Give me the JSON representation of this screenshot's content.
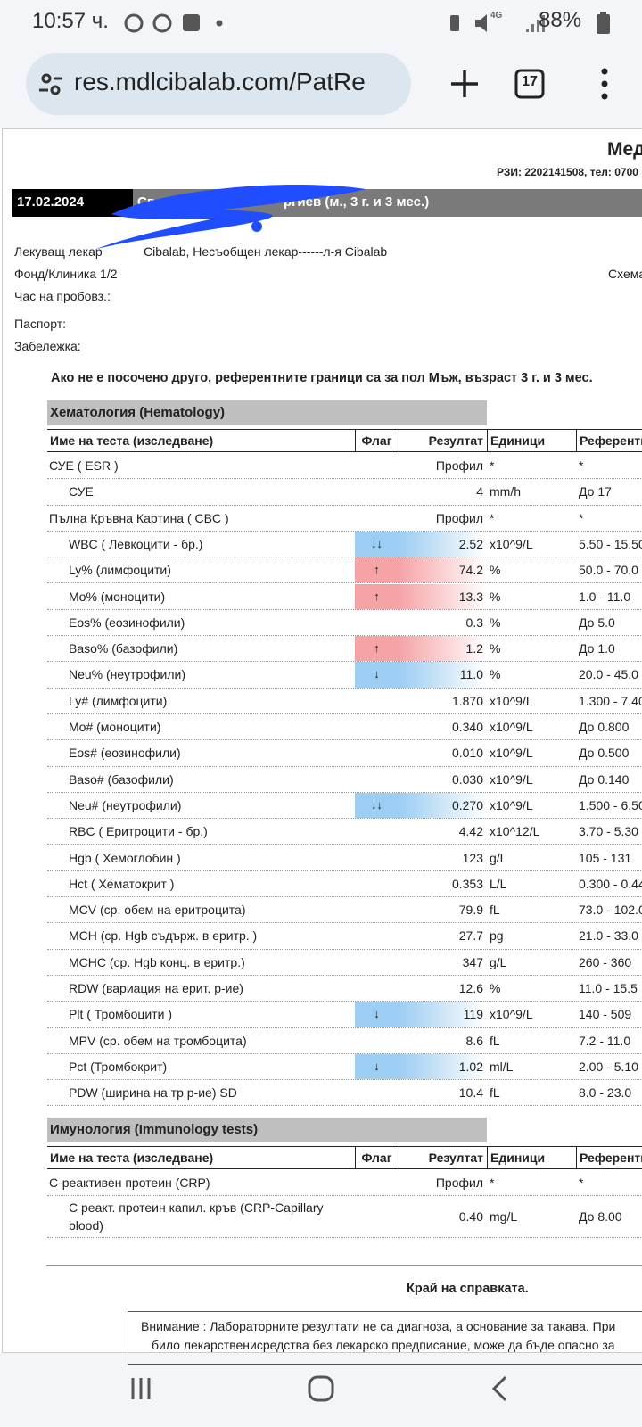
{
  "status_bar": {
    "time": "10:57 ч.",
    "network": "4G",
    "battery": "88%"
  },
  "browser": {
    "url": "res.mdlcibalab.com/PatRe",
    "tabs": "17"
  },
  "report": {
    "title": "Мед",
    "contact": "РЗИ: 2202141508, тел: 0700",
    "date": "17.02.2024",
    "patient_start": "Светос",
    "patient_end": "ргиев (м., 3 г. и 3 мес.)",
    "fields": [
      {
        "label": "Лекуващ лекар",
        "value": "Cibalab, Несъобщен лекар------л-я Cibalab"
      },
      {
        "label": "Фонд/Клиника 1/2",
        "value": "Схема"
      },
      {
        "label": "Час на пробовз.:"
      },
      {
        "label": "Паспорт:"
      },
      {
        "label": "Забележка:"
      }
    ],
    "note": "Ако не е посочено друго, референтните граници са за пол Мъж, възраст 3 г. и 3 мес.",
    "sections": [
      {
        "title": "Хематология (Hematology)",
        "columns": [
          "Име на теста (изследване)",
          "Флаг",
          "Резултат",
          "Единици",
          "Референтн"
        ],
        "rows": [
          {
            "name": "СУЕ ( ESR )",
            "result": "Профил",
            "unit": "*",
            "ref": "*",
            "level": 0
          },
          {
            "name": "СУЕ",
            "result": "4",
            "unit": "mm/h",
            "ref": "До 17",
            "level": 1
          },
          {
            "name": "Пълна Кръвна Картина ( CBC )",
            "result": "Профил",
            "unit": "*",
            "ref": "*",
            "level": 0
          },
          {
            "name": "WBC ( Левкоцити - бр.)",
            "flag": "↓↓",
            "flag_color": "#9ccdf2",
            "result": "2.52",
            "unit": "x10^9/L",
            "ref": "5.50 - 15.50",
            "level": 1
          },
          {
            "name": "Ly% (лимфоцити)",
            "flag": "↑",
            "flag_color": "#f6a3a6",
            "result": "74.2",
            "unit": "%",
            "ref": "50.0 - 70.0",
            "level": 1
          },
          {
            "name": "Mo% (моноцити)",
            "flag": "↑",
            "flag_color": "#f6a3a6",
            "result": "13.3",
            "unit": "%",
            "ref": "1.0 - 11.0",
            "level": 1
          },
          {
            "name": "Eos% (еозинофили)",
            "result": "0.3",
            "unit": "%",
            "ref": "До 5.0",
            "level": 1
          },
          {
            "name": "Baso% (базофили)",
            "flag": "↑",
            "flag_color": "#f6a3a6",
            "result": "1.2",
            "unit": "%",
            "ref": "До 1.0",
            "level": 1
          },
          {
            "name": "Neu% (неутрофили)",
            "flag": "↓",
            "flag_color": "#9ccdf2",
            "result": "11.0",
            "unit": "%",
            "ref": "20.0 - 45.0",
            "level": 1
          },
          {
            "name": "Ly# (лимфоцити)",
            "result": "1.870",
            "unit": "x10^9/L",
            "ref": "1.300 - 7.40",
            "level": 1
          },
          {
            "name": "Mo# (моноцити)",
            "result": "0.340",
            "unit": "x10^9/L",
            "ref": "До 0.800",
            "level": 1
          },
          {
            "name": "Eos# (еозинофили)",
            "result": "0.010",
            "unit": "x10^9/L",
            "ref": "До 0.500",
            "level": 1
          },
          {
            "name": "Baso# (базофили)",
            "result": "0.030",
            "unit": "x10^9/L",
            "ref": "До 0.140",
            "level": 1
          },
          {
            "name": "Neu# (неутрофили)",
            "flag": "↓↓",
            "flag_color": "#9ccdf2",
            "result": "0.270",
            "unit": "x10^9/L",
            "ref": "1.500 - 6.50",
            "level": 1
          },
          {
            "name": "RBC ( Еритроцити - бр.)",
            "result": "4.42",
            "unit": "x10^12/L",
            "ref": "3.70 - 5.30",
            "level": 1
          },
          {
            "name": "Hgb ( Хемоглобин )",
            "result": "123",
            "unit": "g/L",
            "ref": "105 - 131",
            "level": 1
          },
          {
            "name": "Hct ( Хематокрит )",
            "result": "0.353",
            "unit": "L/L",
            "ref": "0.300 - 0.44",
            "level": 1
          },
          {
            "name": "MCV (ср. обем на еритроцита)",
            "result": "79.9",
            "unit": "fL",
            "ref": "73.0 - 102.0",
            "level": 1
          },
          {
            "name": "MCH (ср. Hgb съдърж. в еритр. )",
            "result": "27.7",
            "unit": "pg",
            "ref": "21.0 - 33.0",
            "level": 1
          },
          {
            "name": "MCHC (ср. Hgb конц. в еритр.)",
            "result": "347",
            "unit": "g/L",
            "ref": "260 - 360",
            "level": 1
          },
          {
            "name": "RDW (вариация на ерит. р-ие)",
            "result": "12.6",
            "unit": "%",
            "ref": "11.0 - 15.5",
            "level": 1
          },
          {
            "name": "Plt ( Тромбоцити )",
            "flag": "↓",
            "flag_color": "#9ccdf2",
            "result": "119",
            "unit": "x10^9/L",
            "ref": "140 - 509",
            "level": 1
          },
          {
            "name": "MPV (ср. обем на тромбоцита)",
            "result": "8.6",
            "unit": "fL",
            "ref": "7.2 - 11.0",
            "level": 1
          },
          {
            "name": "Pct (Тромбокрит)",
            "flag": "↓",
            "flag_color": "#9ccdf2",
            "result": "1.02",
            "unit": "ml/L",
            "ref": "2.00 - 5.10",
            "level": 1
          },
          {
            "name": "PDW (ширина на тр р-ие) SD",
            "result": "10.4",
            "unit": "fL",
            "ref": "8.0 - 23.0",
            "level": 1
          }
        ]
      },
      {
        "title": "Имунология (Immunology tests)",
        "columns": [
          "Име на теста (изследване)",
          "Флаг",
          "Резултат",
          "Единици",
          "Референтн"
        ],
        "rows": [
          {
            "name": "С-реактивен протеин (CRP)",
            "result": "Профил",
            "unit": "*",
            "ref": "*",
            "level": 0
          },
          {
            "name": "С реакт. протеин капил. кръв (CRP-Capillary blood)",
            "result": "0.40",
            "unit": "mg/L",
            "ref": "До 8.00",
            "level": 1
          }
        ]
      }
    ],
    "end": "Край на справката.",
    "warning": [
      "Внимание : Лабораторните резултати не са диагноза, а основание за такава. При",
      "било лекарственисредства без лекарско предписание, може да бъде опасно за"
    ]
  }
}
